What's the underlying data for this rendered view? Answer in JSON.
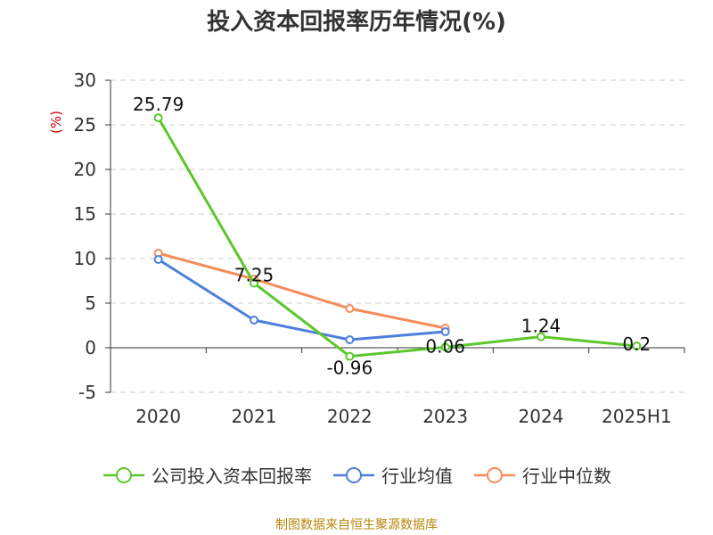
{
  "title": "投入资本回报率历年情况(%)",
  "unit_label": "(%)",
  "source": "制图数据来自恒生聚源数据库",
  "colors": {
    "company": "#5cc72a",
    "industry_avg": "#4d7fdc",
    "industry_median": "#f58c5a",
    "grid": "#cccccc",
    "axis": "#333333"
  },
  "chart_data": {
    "type": "line",
    "categories": [
      "2020",
      "2021",
      "2022",
      "2023",
      "2024",
      "2025H1"
    ],
    "ylim": [
      -5,
      30
    ],
    "yticks": [
      -5,
      0,
      5,
      10,
      15,
      20,
      25,
      30
    ],
    "grid": true,
    "legend_position": "bottom",
    "series": [
      {
        "name": "公司投入资本回报率",
        "values": [
          25.79,
          7.25,
          -0.96,
          0.06,
          1.24,
          0.2
        ],
        "labels": [
          "25.79",
          "7.25",
          "-0.96",
          "0.06",
          "1.24",
          "0.2"
        ]
      },
      {
        "name": "行业均值",
        "values": [
          9.9,
          3.1,
          0.9,
          1.8,
          null,
          null
        ]
      },
      {
        "name": "行业中位数",
        "values": [
          10.6,
          7.7,
          4.4,
          2.2,
          null,
          null
        ]
      }
    ]
  }
}
